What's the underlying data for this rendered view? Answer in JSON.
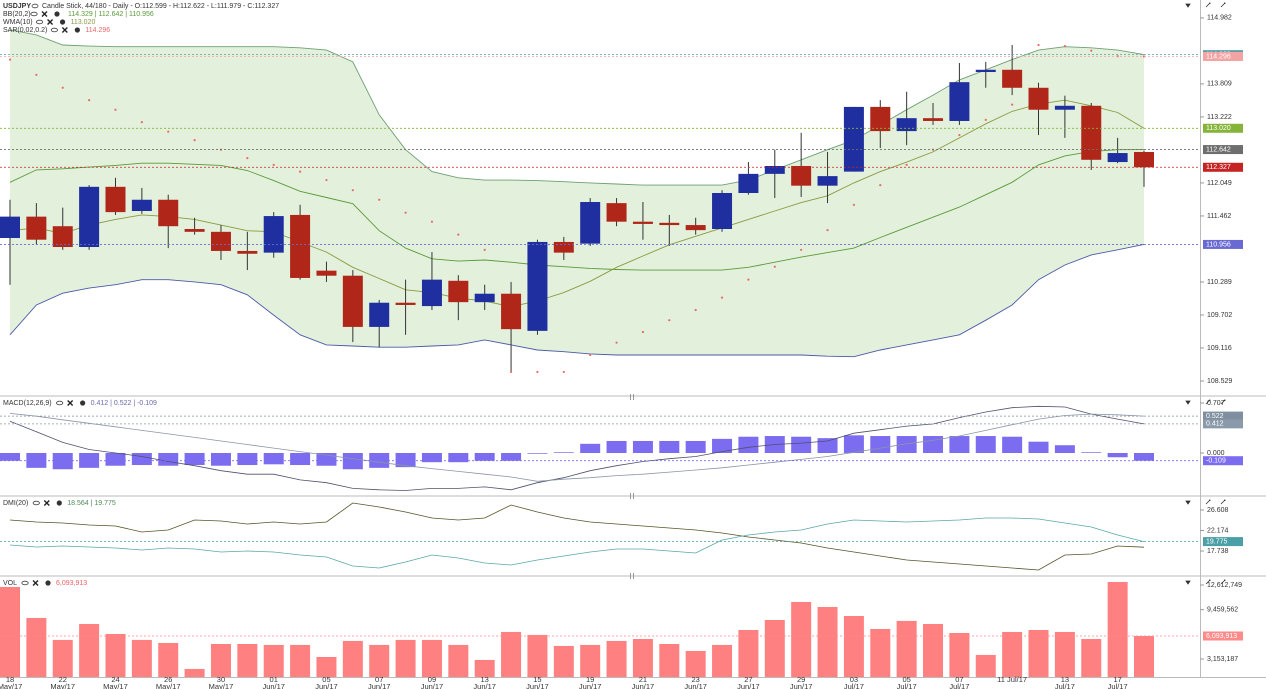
{
  "chart_data": [
    {
      "type": "candlestick",
      "title": "USDJPY",
      "subtitle": "Candle Stick, 44/180 - Daily - O:112.599 - H:112.622 - L:111.979 - C:112.327",
      "categories": [
        "18 May/17",
        null,
        "22 May/17",
        null,
        "24 May/17",
        null,
        "26 May/17",
        null,
        "30 May/17",
        null,
        "01 Jun/17",
        null,
        "05 Jun/17",
        null,
        "07 Jun/17",
        null,
        "09 Jun/17",
        null,
        "13 Jun/17",
        null,
        "15 Jun/17",
        null,
        "19 Jun/17",
        null,
        "21 Jun/17",
        null,
        "23 Jun/17",
        null,
        "27 Jun/17",
        null,
        "29 Jun/17",
        null,
        "03 Jul/17",
        null,
        "05 Jul/17",
        null,
        "07 Jul/17",
        null,
        "11 Jul/17",
        null,
        "13 Jul/17",
        null,
        "17 Jul/17",
        null
      ],
      "open": [
        111.07,
        111.45,
        111.28,
        110.91,
        111.98,
        111.55,
        111.75,
        111.23,
        111.18,
        110.84,
        110.81,
        111.48,
        110.49,
        110.4,
        109.49,
        109.92,
        109.86,
        110.31,
        109.93,
        110.08,
        109.42,
        111.0,
        110.97,
        111.69,
        111.36,
        111.34,
        111.3,
        111.23,
        111.87,
        112.21,
        112.35,
        112.0,
        112.25,
        113.4,
        112.97,
        113.2,
        113.15,
        114.02,
        114.06,
        113.74,
        113.35,
        113.42,
        112.42,
        112.599
      ],
      "high": [
        111.75,
        111.69,
        111.61,
        112.01,
        112.14,
        111.96,
        111.84,
        111.43,
        111.3,
        111.18,
        111.53,
        111.66,
        110.65,
        110.5,
        109.97,
        110.33,
        110.82,
        110.41,
        110.24,
        110.29,
        111.04,
        111.09,
        111.78,
        111.78,
        111.71,
        111.48,
        111.43,
        111.92,
        112.42,
        112.64,
        112.94,
        112.6,
        113.4,
        113.52,
        113.67,
        113.47,
        114.18,
        114.2,
        114.5,
        113.83,
        113.6,
        113.47,
        112.85,
        112.622
      ],
      "low": [
        110.24,
        110.95,
        110.86,
        110.86,
        111.48,
        111.5,
        110.89,
        111.13,
        110.68,
        110.5,
        110.72,
        110.33,
        110.29,
        109.22,
        109.13,
        109.35,
        109.79,
        109.61,
        109.79,
        108.69,
        109.35,
        110.68,
        110.93,
        111.28,
        111.04,
        110.93,
        111.13,
        111.18,
        111.84,
        111.78,
        111.8,
        111.69,
        112.25,
        112.67,
        112.72,
        113.08,
        113.08,
        113.74,
        113.61,
        112.9,
        112.85,
        112.28,
        112.4,
        111.979
      ],
      "close": [
        111.45,
        111.04,
        110.91,
        111.98,
        111.53,
        111.75,
        111.28,
        111.18,
        110.84,
        110.79,
        111.46,
        110.36,
        110.4,
        109.49,
        109.92,
        109.88,
        110.33,
        109.93,
        110.08,
        109.45,
        111.0,
        110.81,
        111.71,
        111.36,
        111.32,
        111.3,
        111.21,
        111.87,
        112.21,
        112.35,
        112.0,
        112.17,
        113.4,
        112.97,
        113.2,
        113.15,
        113.84,
        114.06,
        113.74,
        113.35,
        113.42,
        112.46,
        112.58,
        112.327
      ],
      "up_color": "#1f2fa0",
      "down_color": "#b0271a",
      "ylim": [
        108.28,
        115.3
      ],
      "yticks": [
        108.529,
        109.116,
        109.702,
        110.289,
        111.462,
        112.049,
        113.222,
        113.809,
        114.982
      ],
      "band": {
        "name": "BB(20,2)",
        "label": "114.329 | 112.642 | 110.956",
        "fill": "#e3f1dc",
        "color": "#5a9a3a",
        "upper_color": "#6f9f73",
        "lower_color": "#4a5aa8",
        "upper": [
          114.77,
          114.68,
          114.5,
          114.48,
          114.47,
          114.47,
          114.47,
          114.47,
          114.47,
          114.47,
          114.47,
          114.45,
          114.41,
          114.2,
          113.26,
          112.64,
          112.25,
          112.14,
          112.1,
          112.1,
          112.09,
          112.07,
          112.05,
          112.03,
          112.01,
          112.01,
          112.01,
          112.01,
          112.1,
          112.28,
          112.46,
          112.64,
          112.81,
          113.08,
          113.35,
          113.61,
          113.88,
          114.06,
          114.24,
          114.41,
          114.47,
          114.45,
          114.41,
          114.329
        ],
        "middle": [
          112.06,
          112.28,
          112.3,
          112.33,
          112.36,
          112.4,
          112.4,
          112.38,
          112.36,
          112.27,
          112.09,
          111.9,
          111.79,
          111.68,
          111.2,
          110.89,
          110.7,
          110.66,
          110.68,
          110.64,
          110.59,
          110.56,
          110.53,
          110.51,
          110.5,
          110.5,
          110.5,
          110.5,
          110.55,
          110.64,
          110.73,
          110.81,
          110.89,
          111.08,
          111.26,
          111.44,
          111.62,
          111.84,
          112.06,
          112.37,
          112.53,
          112.61,
          112.64,
          112.642
        ],
        "lower": [
          109.35,
          109.88,
          110.09,
          110.18,
          110.24,
          110.33,
          110.33,
          110.29,
          110.24,
          110.06,
          109.7,
          109.35,
          109.17,
          109.15,
          109.13,
          109.13,
          109.15,
          109.17,
          109.26,
          109.17,
          109.08,
          109.05,
          109.01,
          108.99,
          108.99,
          108.99,
          108.99,
          108.99,
          108.99,
          108.99,
          108.99,
          108.97,
          108.96,
          109.08,
          109.17,
          109.26,
          109.35,
          109.61,
          109.88,
          110.33,
          110.59,
          110.77,
          110.86,
          110.956
        ]
      },
      "series": [
        {
          "name": "WMA(10)",
          "label": "113.020",
          "color": "#8a9a40",
          "style": "line",
          "values": [
            111.2,
            111.25,
            111.15,
            111.3,
            111.4,
            111.48,
            111.45,
            111.4,
            111.3,
            111.2,
            111.18,
            111.0,
            110.82,
            110.55,
            110.35,
            110.15,
            110.1,
            110.0,
            109.95,
            109.85,
            109.95,
            110.1,
            110.3,
            110.55,
            110.75,
            110.95,
            111.1,
            111.25,
            111.4,
            111.55,
            111.7,
            111.82,
            112.05,
            112.25,
            112.42,
            112.6,
            112.85,
            113.1,
            113.32,
            113.45,
            113.52,
            113.42,
            113.3,
            113.02
          ]
        },
        {
          "name": "SAR(0.02,0.2)",
          "label": "114.296",
          "color": "#e86a6a",
          "style": "dots",
          "values": [
            114.24,
            113.97,
            113.74,
            113.52,
            113.35,
            113.13,
            112.96,
            112.81,
            112.64,
            112.49,
            112.37,
            112.25,
            112.1,
            111.92,
            111.75,
            111.52,
            111.36,
            111.13,
            110.86,
            108.69,
            108.69,
            108.69,
            108.99,
            109.21,
            109.4,
            109.61,
            109.79,
            110.01,
            110.33,
            110.56,
            110.86,
            111.21,
            111.66,
            112.01,
            112.37,
            112.64,
            112.9,
            113.17,
            113.44,
            114.5,
            114.48,
            114.4,
            114.3,
            114.296
          ]
        }
      ],
      "badges": [
        {
          "value": 114.329,
          "label": "114.329",
          "color": "#5d9ea6"
        },
        {
          "value": 114.296,
          "label": "114.296",
          "color": "#f2a3a3"
        },
        {
          "value": 113.02,
          "label": "113.020",
          "color": "#86b43a"
        },
        {
          "value": 112.642,
          "label": "112.642",
          "color": "#6e6e6e"
        },
        {
          "value": 112.327,
          "label": "112.327",
          "color": "#c62424"
        },
        {
          "value": 110.956,
          "label": "110.956",
          "color": "#6a6ad2"
        }
      ]
    },
    {
      "type": "combo",
      "title": "MACD(12,26,9)",
      "legend_value": "0.412 | 0.522 | -0.109",
      "legend_color": "#6a6aa8",
      "ylim": [
        -0.594,
        0.792
      ],
      "yticks": [
        0.707,
        {
          "value": 0,
          "label": "0.000"
        }
      ],
      "series": [
        {
          "name": "MACD",
          "kind": "line",
          "color": "#50506e",
          "values": [
            0.45,
            0.3,
            0.15,
            0.05,
            0.0,
            -0.05,
            -0.12,
            -0.18,
            -0.25,
            -0.3,
            -0.3,
            -0.38,
            -0.42,
            -0.5,
            -0.52,
            -0.53,
            -0.5,
            -0.5,
            -0.48,
            -0.52,
            -0.42,
            -0.35,
            -0.25,
            -0.18,
            -0.12,
            -0.08,
            -0.05,
            0.02,
            0.08,
            0.12,
            0.14,
            0.17,
            0.28,
            0.33,
            0.38,
            0.41,
            0.5,
            0.58,
            0.64,
            0.66,
            0.65,
            0.55,
            0.48,
            0.412
          ]
        },
        {
          "name": "Signal",
          "kind": "line",
          "color": "#8a96a8",
          "values": [
            0.56,
            0.52,
            0.47,
            0.42,
            0.37,
            0.32,
            0.27,
            0.22,
            0.17,
            0.12,
            0.07,
            0.02,
            -0.03,
            -0.08,
            -0.13,
            -0.18,
            -0.22,
            -0.26,
            -0.3,
            -0.34,
            -0.4,
            -0.37,
            -0.35,
            -0.32,
            -0.3,
            -0.27,
            -0.24,
            -0.21,
            -0.17,
            -0.13,
            -0.09,
            -0.05,
            0.01,
            0.07,
            0.13,
            0.18,
            0.24,
            0.32,
            0.4,
            0.48,
            0.53,
            0.55,
            0.54,
            0.522
          ]
        },
        {
          "name": "Histogram",
          "kind": "bar",
          "color": "#7b6cf0",
          "values": [
            -0.11,
            -0.21,
            -0.23,
            -0.21,
            -0.18,
            -0.17,
            -0.18,
            -0.17,
            -0.18,
            -0.17,
            -0.16,
            -0.17,
            -0.18,
            -0.23,
            -0.21,
            -0.2,
            -0.13,
            -0.13,
            -0.11,
            -0.11,
            -0.01,
            0.01,
            0.13,
            0.17,
            0.17,
            0.17,
            0.17,
            0.2,
            0.23,
            0.24,
            0.23,
            0.21,
            0.25,
            0.24,
            0.24,
            0.24,
            0.24,
            0.24,
            0.23,
            0.16,
            0.11,
            0.01,
            -0.06,
            -0.109
          ]
        }
      ],
      "badges": [
        {
          "value": 0.522,
          "label": "0.522",
          "color": "#7f8fa0"
        },
        {
          "value": 0.412,
          "label": "0.412",
          "color": "#8a9aaa"
        },
        {
          "value": -0.109,
          "label": "-0.109",
          "color": "#7b6cf0"
        }
      ]
    },
    {
      "type": "line",
      "title": "DMI(20)",
      "legend_value": "18.564 | 19.775",
      "legend_color": "#4f8a5a",
      "ylim": [
        12.55,
        29.42
      ],
      "yticks": [
        26.608,
        22.174,
        17.738
      ],
      "series": [
        {
          "name": "+DI",
          "color": "#55552a",
          "values": [
            24.44,
            24.01,
            23.8,
            23.36,
            23.15,
            21.85,
            22.28,
            24.44,
            24.23,
            23.58,
            24.01,
            23.58,
            24.01,
            28.12,
            27.26,
            26.18,
            24.88,
            24.44,
            24.88,
            27.69,
            26.18,
            24.88,
            24.01,
            23.58,
            23.15,
            22.71,
            22.28,
            21.63,
            20.77,
            20.12,
            19.47,
            18.39,
            17.52,
            16.66,
            15.79,
            15.36,
            14.92,
            14.49,
            14.06,
            13.63,
            16.87,
            17.1,
            18.82,
            18.564
          ]
        },
        {
          "name": "-DI",
          "color": "#5aa8a8",
          "values": [
            19.04,
            18.6,
            18.82,
            18.6,
            18.39,
            17.95,
            18.39,
            18.17,
            17.52,
            17.74,
            17.52,
            16.87,
            16.44,
            14.49,
            14.06,
            15.36,
            16.87,
            16.22,
            15.14,
            14.71,
            15.79,
            16.66,
            17.52,
            18.17,
            18.17,
            17.74,
            17.31,
            20.12,
            21.2,
            21.85,
            22.28,
            23.58,
            24.44,
            24.23,
            24.01,
            24.23,
            24.44,
            24.88,
            24.88,
            24.66,
            23.8,
            22.93,
            21.2,
            19.775
          ]
        }
      ],
      "badges": [
        {
          "value": 19.775,
          "label": "19.775",
          "color": "#4aa0a6"
        }
      ]
    },
    {
      "type": "bar",
      "title": "VOL",
      "legend_value": "6,093,913",
      "legend_color": "#f06060",
      "ylim": [
        852211,
        13635405
      ],
      "yticks": [
        {
          "value": 12612749,
          "label": "12,612,749"
        },
        {
          "value": 9459562,
          "label": "9,459,562"
        },
        {
          "value": 3153187,
          "label": "3,153,187"
        }
      ],
      "color": "#ff8080",
      "values": [
        12360000,
        8400000,
        5590000,
        7630000,
        6350000,
        5590000,
        5200000,
        1880000,
        5070000,
        5070000,
        4950000,
        4950000,
        3410000,
        5460000,
        4950000,
        5590000,
        5590000,
        4950000,
        3030000,
        6610000,
        6230000,
        4820000,
        4950000,
        5460000,
        5710000,
        5070000,
        4180000,
        4950000,
        6860000,
        8140000,
        10440000,
        9800000,
        8650000,
        6990000,
        8020000,
        7630000,
        6480000,
        3670000,
        6610000,
        6860000,
        6610000,
        5710000,
        13000000,
        6093913
      ],
      "badges": [
        {
          "value": 6093913,
          "label": "6,093,913",
          "color": "#ff8a8a"
        }
      ]
    }
  ]
}
